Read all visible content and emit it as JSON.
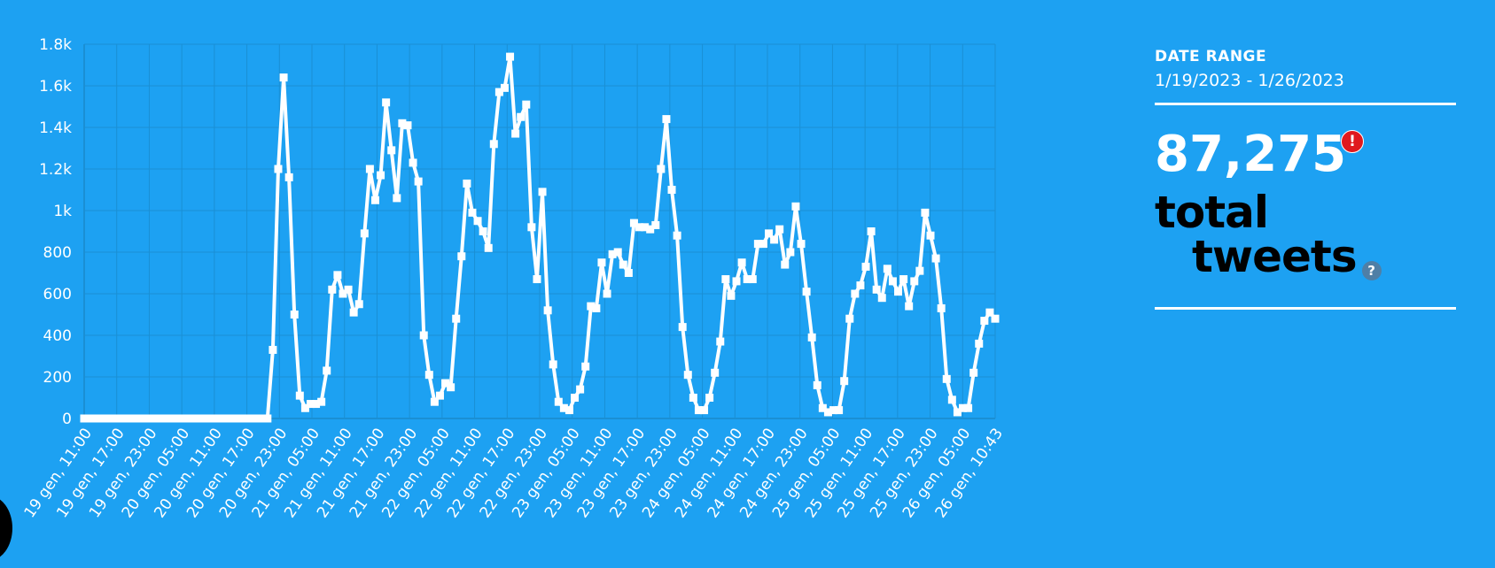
{
  "sidebar": {
    "date_range_label": "DATE RANGE",
    "date_range_value": "1/19/2023 - 1/26/2023",
    "total_value": "87,275",
    "alert_glyph": "!",
    "total_word1": "total",
    "total_word2": "tweets",
    "help_glyph": "?",
    "alert_icon": "exclamation-circle-icon",
    "help_icon": "question-circle-icon"
  },
  "colors": {
    "background": "#1da1f2",
    "line": "#ffffff",
    "grid": "#1a8fd4",
    "alert": "#e0191e",
    "help": "#4f7fa6"
  },
  "chart_data": {
    "type": "line",
    "title": "",
    "xlabel": "",
    "ylabel": "",
    "ylim": [
      0,
      1800
    ],
    "yticks": [
      {
        "value": 0,
        "label": "0"
      },
      {
        "value": 200,
        "label": "200"
      },
      {
        "value": 400,
        "label": "400"
      },
      {
        "value": 600,
        "label": "600"
      },
      {
        "value": 800,
        "label": "800"
      },
      {
        "value": 1000,
        "label": "1k"
      },
      {
        "value": 1200,
        "label": "1.2k"
      },
      {
        "value": 1400,
        "label": "1.4k"
      },
      {
        "value": 1600,
        "label": "1.6k"
      },
      {
        "value": 1800,
        "label": "1.8k"
      }
    ],
    "x_tick_labels": [
      "19 gen, 11:00",
      "19 gen, 17:00",
      "19 gen, 23:00",
      "20 gen, 05:00",
      "20 gen, 11:00",
      "20 gen, 17:00",
      "20 gen, 23:00",
      "21 gen, 05:00",
      "21 gen, 11:00",
      "21 gen, 17:00",
      "21 gen, 23:00",
      "22 gen, 05:00",
      "22 gen, 11:00",
      "22 gen, 17:00",
      "22 gen, 23:00",
      "23 gen, 05:00",
      "23 gen, 11:00",
      "23 gen, 17:00",
      "23 gen, 23:00",
      "24 gen, 05:00",
      "24 gen, 11:00",
      "24 gen, 17:00",
      "24 gen, 23:00",
      "25 gen, 05:00",
      "25 gen, 11:00",
      "25 gen, 17:00",
      "25 gen, 23:00",
      "26 gen, 05:00",
      "26 gen, 10:43"
    ],
    "grid": true,
    "legend": "none",
    "series": [
      {
        "values": [
          0,
          0,
          0,
          0,
          0,
          0,
          0,
          0,
          0,
          0,
          0,
          0,
          0,
          0,
          0,
          0,
          0,
          0,
          0,
          0,
          0,
          0,
          0,
          0,
          0,
          0,
          0,
          0,
          0,
          0,
          0,
          0,
          0,
          0,
          0,
          330,
          1200,
          1640,
          1160,
          500,
          110,
          50,
          70,
          70,
          80,
          230,
          620,
          690,
          600,
          620,
          510,
          550,
          890,
          1200,
          1050,
          1170,
          1520,
          1290,
          1060,
          1420,
          1410,
          1230,
          1140,
          400,
          210,
          80,
          110,
          170,
          150,
          480,
          780,
          1130,
          990,
          950,
          900,
          820,
          1320,
          1570,
          1590,
          1740,
          1370,
          1450,
          1510,
          920,
          670,
          1090,
          520,
          260,
          80,
          50,
          40,
          100,
          140,
          250,
          540,
          530,
          750,
          600,
          790,
          800,
          740,
          700,
          940,
          920,
          920,
          910,
          930,
          1200,
          1440,
          1100,
          880,
          440,
          210,
          100,
          40,
          40,
          100,
          220,
          370,
          670,
          590,
          660,
          750,
          670,
          670,
          840,
          840,
          890,
          860,
          910,
          740,
          800,
          1020,
          840,
          610,
          390,
          160,
          50,
          30,
          40,
          40,
          180,
          480,
          600,
          640,
          730,
          900,
          620,
          580,
          720,
          660,
          610,
          670,
          540,
          660,
          710,
          990,
          880,
          770,
          530,
          190,
          90,
          30,
          50,
          50,
          220,
          360,
          470,
          510,
          480
        ]
      }
    ]
  }
}
